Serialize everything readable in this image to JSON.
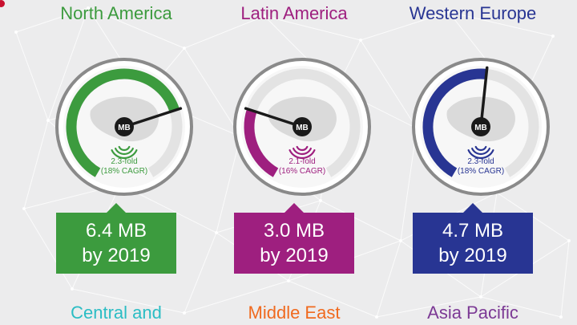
{
  "regions": [
    {
      "name": "North America",
      "color": "#3c9b3e",
      "growth": "2.3-fold",
      "cagr": "(18% CAGR)",
      "value_line1": "6.4 MB",
      "value_line2": "by 2019",
      "gauge_label": "MB",
      "gauge_fill_fraction": 0.74
    },
    {
      "name": "Latin America",
      "color": "#9e1f7f",
      "growth": "2.1-fold",
      "cagr": "(16% CAGR)",
      "value_line1": "3.0 MB",
      "value_line2": "by 2019",
      "gauge_label": "MB",
      "gauge_fill_fraction": 0.26
    },
    {
      "name": "Western Europe",
      "color": "#283593",
      "growth": "2.3-fold",
      "cagr": "(18% CAGR)",
      "value_line1": "4.7 MB",
      "value_line2": "by 2019",
      "gauge_label": "MB",
      "gauge_fill_fraction": 0.52
    }
  ],
  "bottom_row": [
    {
      "label": "Central and",
      "color": "#2bbdc4"
    },
    {
      "label": "Middle East",
      "color": "#f06a1f"
    },
    {
      "label": "Asia Pacific",
      "color": "#7c3a95"
    }
  ],
  "chart_data": {
    "type": "gauge",
    "title": "",
    "categories": [
      "North America",
      "Latin America",
      "Western Europe"
    ],
    "values": [
      6.4,
      3.0,
      4.7
    ],
    "unit": "MB",
    "year": 2019,
    "growth": [
      "2.3-fold",
      "2.1-fold",
      "2.3-fold"
    ],
    "cagr_percent": [
      18,
      16,
      18
    ]
  }
}
